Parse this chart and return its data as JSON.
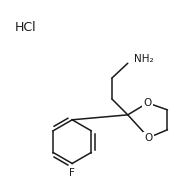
{
  "hcl_text": "HCl",
  "nh2_text": "NH₂",
  "o1_text": "O",
  "o2_text": "O",
  "f_text": "F",
  "background": "#ffffff",
  "line_color": "#1a1a1a",
  "text_color": "#1a1a1a",
  "figsize": [
    1.93,
    1.86
  ],
  "dpi": 100,
  "lw": 1.1
}
